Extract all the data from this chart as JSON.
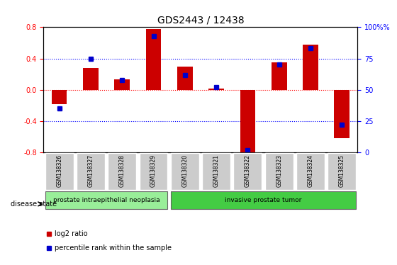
{
  "title": "GDS2443 / 12438",
  "samples": [
    "GSM138326",
    "GSM138327",
    "GSM138328",
    "GSM138329",
    "GSM138320",
    "GSM138321",
    "GSM138322",
    "GSM138323",
    "GSM138324",
    "GSM138325"
  ],
  "log2_ratio": [
    -0.18,
    0.28,
    0.13,
    0.78,
    0.3,
    0.02,
    -0.83,
    0.35,
    0.58,
    -0.62
  ],
  "percentile_rank": [
    35,
    75,
    58,
    93,
    62,
    52,
    2,
    70,
    83,
    22
  ],
  "ylim_left": [
    -0.8,
    0.8
  ],
  "ylim_right": [
    0,
    100
  ],
  "yticks_left": [
    -0.8,
    -0.4,
    0.0,
    0.4,
    0.8
  ],
  "yticks_right": [
    0,
    25,
    50,
    75,
    100
  ],
  "hline_values": [
    -0.4,
    0.0,
    0.4
  ],
  "red_hline": 0.0,
  "group1_label": "prostate intraepithelial neoplasia",
  "group2_label": "invasive prostate tumor",
  "group1_count": 4,
  "group2_count": 6,
  "disease_state_label": "disease state",
  "legend_red": "log2 ratio",
  "legend_blue": "percentile rank within the sample",
  "bar_color_red": "#cc0000",
  "bar_color_blue": "#0000cc",
  "group1_bg": "#99ee99",
  "group2_bg": "#44cc44",
  "sample_bg": "#cccccc",
  "bar_width": 0.35
}
